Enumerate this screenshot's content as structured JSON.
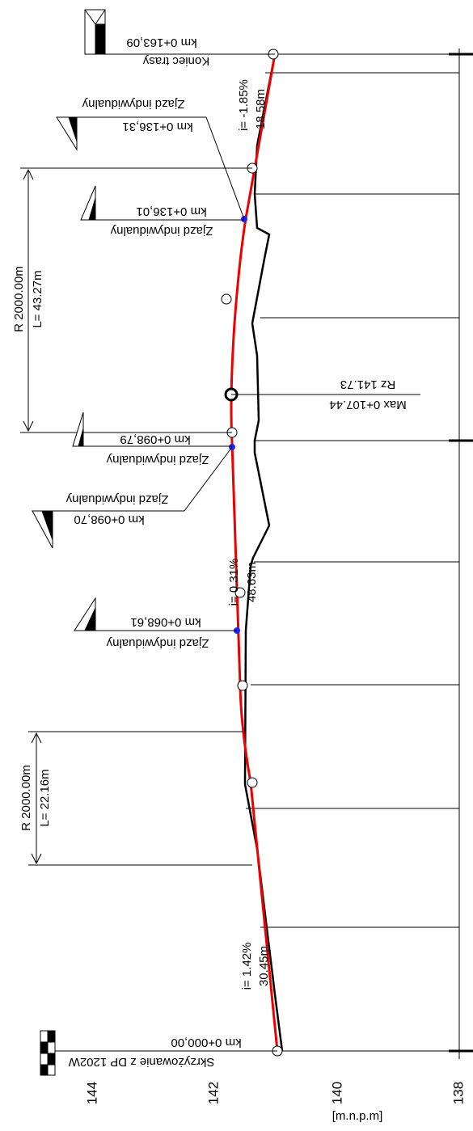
{
  "axis": {
    "labels": [
      "144",
      "142",
      "140",
      "138"
    ],
    "unit": "[m.n.p.m]"
  },
  "stations": [
    {
      "label": "Koniec trasy",
      "km": "km 0+163,09"
    },
    {
      "label": "Zjazd indywidualny",
      "km": "km 0+136,31"
    },
    {
      "label": "Zjazd indywidualny",
      "km": "km 0+136,01"
    },
    {
      "label": "Zjazd indywidualny",
      "km": "km 0+098,79"
    },
    {
      "label": "Zjazd indywidualny",
      "km": "km 0+098,70"
    },
    {
      "label": "Zjazd indywidualny",
      "km": "km 0+068,61"
    },
    {
      "label": "Skrzyżowanie z DP 1202W",
      "km": "km 0+000,00"
    }
  ],
  "grades": [
    {
      "slope": "i= -1.85%",
      "length": "18.58m"
    },
    {
      "slope": "i= 0.31%",
      "length": "48.63m"
    },
    {
      "slope": "i= 1.42%",
      "length": "30.45m"
    }
  ],
  "curves": [
    {
      "radius": "R 2000.00m",
      "length": "L= 43.27m"
    },
    {
      "radius": "R 2000.00m",
      "length": "L= 22.16m"
    }
  ],
  "summit": {
    "station": "Max 0+107.44",
    "elevation": "Rz 141.73"
  }
}
